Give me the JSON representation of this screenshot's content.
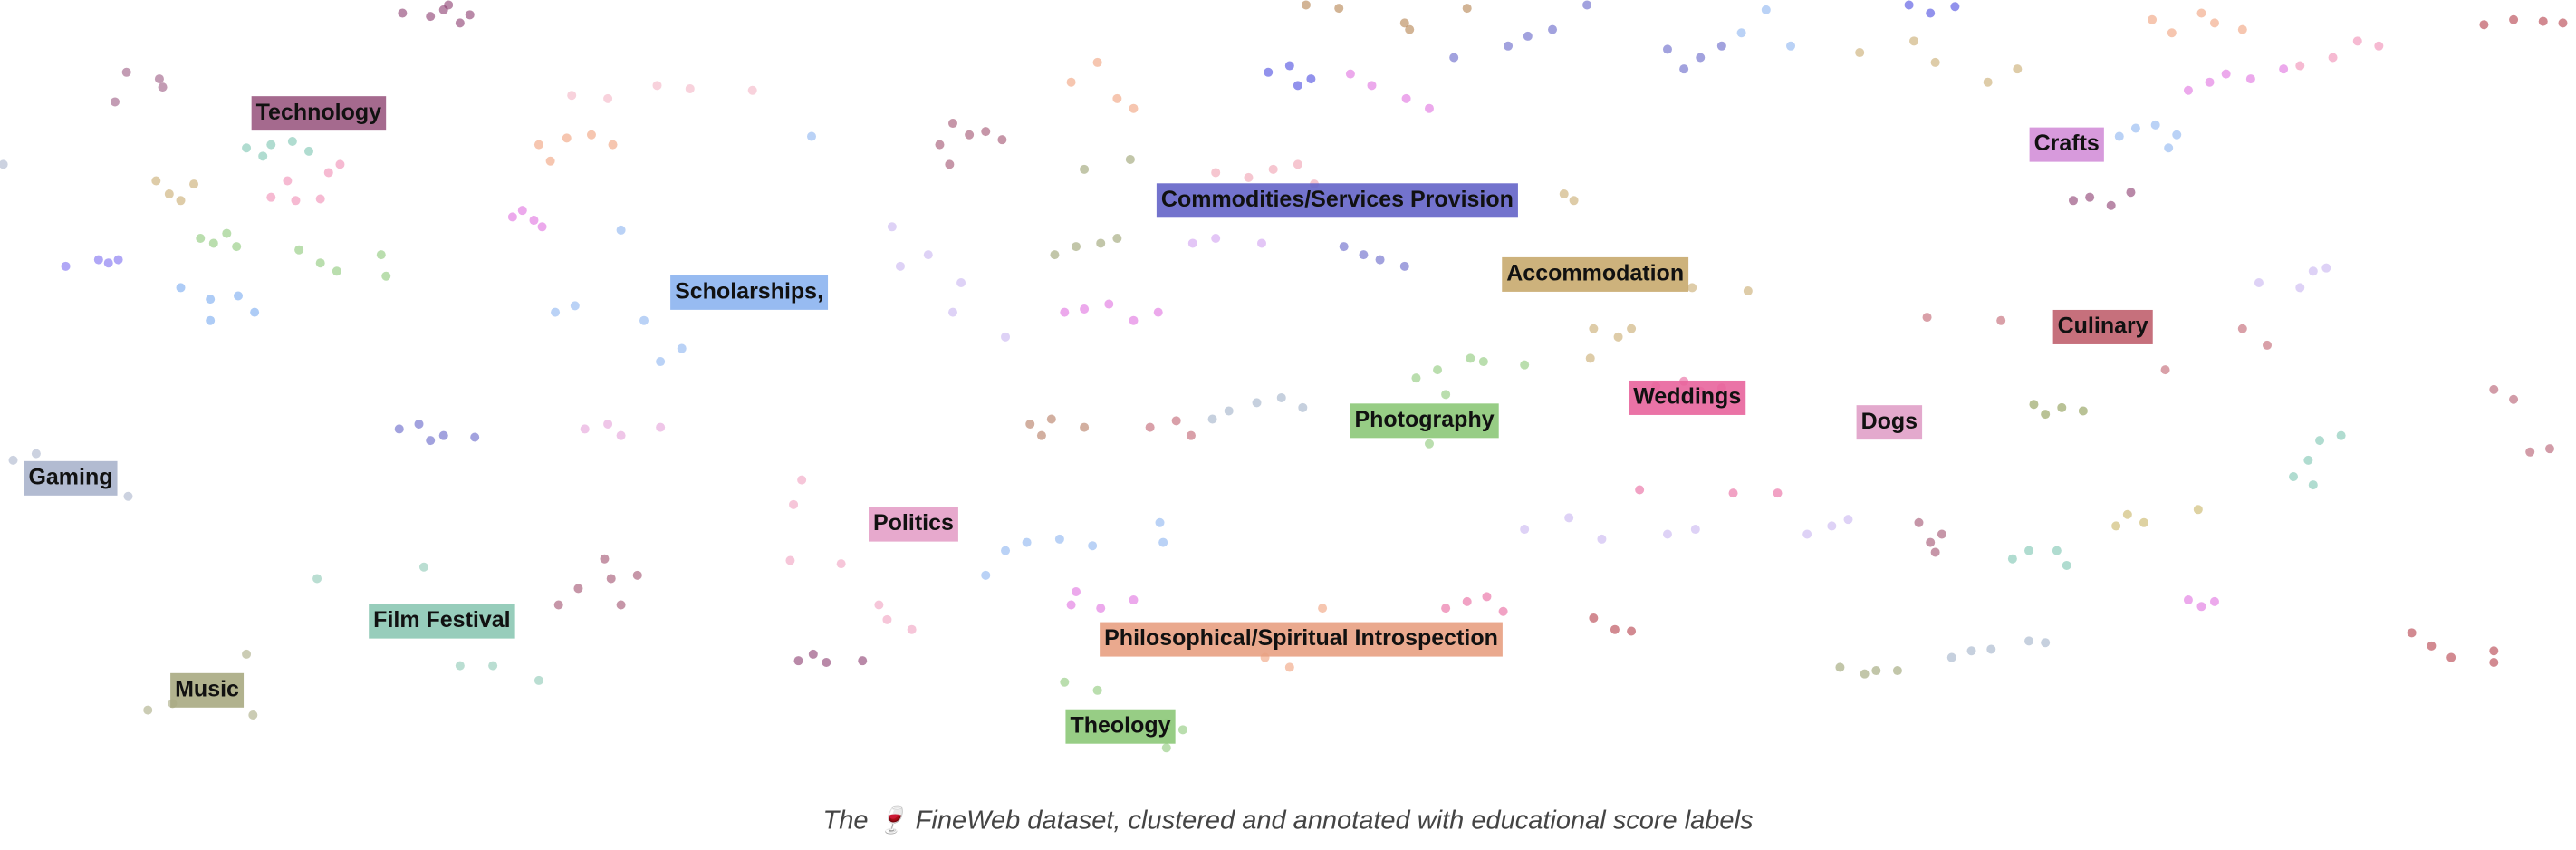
{
  "chart_data": {
    "type": "scatter",
    "caption": "The 🍷 FineWeb dataset, clustered and annotated with educational score labels",
    "xlim": [
      0,
      1568
    ],
    "ylim": [
      470,
      0
    ],
    "annotations": [
      {
        "text": "Technology",
        "x": 194,
        "y": 69,
        "color": "#9b5a82"
      },
      {
        "text": "Crafts",
        "x": 1258,
        "y": 88,
        "color": "#d38fd8"
      },
      {
        "text": "Commodities/Services Provision",
        "x": 814,
        "y": 122,
        "color": "#6464c8"
      },
      {
        "text": "Accommodation",
        "x": 971,
        "y": 167,
        "color": "#c8aa6e"
      },
      {
        "text": "Scholarships,",
        "x": 456,
        "y": 178,
        "color": "#8cb4f0"
      },
      {
        "text": "Culinary",
        "x": 1280,
        "y": 199,
        "color": "#c0606e"
      },
      {
        "text": "Weddings",
        "x": 1027,
        "y": 242,
        "color": "#e8649c"
      },
      {
        "text": "Photography",
        "x": 867,
        "y": 256,
        "color": "#8cc878"
      },
      {
        "text": "Dogs",
        "x": 1150,
        "y": 257,
        "color": "#e0a0c8"
      },
      {
        "text": "Gaming",
        "x": 43,
        "y": 291,
        "color": "#aab4cc"
      },
      {
        "text": "Politics",
        "x": 556,
        "y": 319,
        "color": "#e4a0c8"
      },
      {
        "text": "Film Festival",
        "x": 269,
        "y": 378,
        "color": "#8cc8b4"
      },
      {
        "text": "Philosophical/Spiritual Introspection",
        "x": 792,
        "y": 389,
        "color": "#e8a082"
      },
      {
        "text": "Music",
        "x": 126,
        "y": 420,
        "color": "#a8aa82"
      },
      {
        "text": "Theology",
        "x": 682,
        "y": 442,
        "color": "#8cc878"
      }
    ],
    "series": [
      {
        "color": "#8b3a6e",
        "x": [
          245,
          262,
          270,
          280,
          286,
          273
        ],
        "values": [
          8,
          10,
          6,
          14,
          9,
          3
        ]
      },
      {
        "color": "#9b5a82",
        "x": [
          77,
          97,
          70,
          99
        ],
        "values": [
          44,
          48,
          62,
          53
        ]
      },
      {
        "color": "#7cc4b0",
        "x": [
          150,
          165,
          178,
          188,
          160
        ],
        "values": [
          90,
          88,
          86,
          92,
          95
        ]
      },
      {
        "color": "#f08cb4",
        "x": [
          165,
          180,
          195,
          200,
          207,
          175
        ],
        "values": [
          120,
          122,
          121,
          105,
          100,
          110
        ]
      },
      {
        "color": "#c8aa6e",
        "x": [
          95,
          103,
          110,
          118
        ],
        "values": [
          110,
          118,
          122,
          112
        ]
      },
      {
        "color": "#8cc878",
        "x": [
          122,
          130,
          138,
          144,
          182,
          195,
          205,
          232,
          235
        ],
        "values": [
          145,
          148,
          142,
          150,
          152,
          160,
          165,
          155,
          168
        ]
      },
      {
        "color": "#7c6cf0",
        "x": [
          40,
          60,
          66,
          72
        ],
        "values": [
          162,
          158,
          160,
          158
        ]
      },
      {
        "color": "#78aaf0",
        "x": [
          110,
          128,
          145,
          155,
          128
        ],
        "values": [
          175,
          182,
          180,
          190,
          195
        ]
      },
      {
        "color": "#e070e0",
        "x": [
          312,
          318,
          325,
          330
        ],
        "values": [
          132,
          128,
          134,
          138
        ]
      },
      {
        "color": "#f0a07c",
        "x": [
          328,
          335,
          345,
          360,
          373
        ],
        "values": [
          88,
          98,
          84,
          82,
          88
        ]
      },
      {
        "color": "#f4b4c4",
        "x": [
          348,
          370,
          400,
          420,
          458
        ],
        "values": [
          58,
          60,
          52,
          54,
          55
        ]
      },
      {
        "color": "#8cb4f0",
        "x": [
          378,
          338,
          350,
          392,
          402,
          415,
          494
        ],
        "values": [
          140,
          190,
          186,
          195,
          220,
          212,
          83
        ]
      },
      {
        "color": "#6464c8",
        "x": [
          243,
          255,
          262,
          270,
          289
        ],
        "values": [
          261,
          258,
          268,
          265,
          266
        ]
      },
      {
        "color": "#e4a0d8",
        "x": [
          356,
          370,
          378,
          402
        ],
        "values": [
          261,
          258,
          265,
          260
        ]
      },
      {
        "color": "#a0506e",
        "x": [
          340,
          352,
          368,
          372,
          388,
          378
        ],
        "values": [
          368,
          358,
          340,
          352,
          350,
          368
        ]
      },
      {
        "color": "#a0506e",
        "x": [
          572,
          580,
          590,
          600,
          610,
          578
        ],
        "values": [
          88,
          75,
          82,
          80,
          85,
          100
        ]
      },
      {
        "color": "#9aa070",
        "x": [
          642,
          655,
          660,
          670,
          688,
          680
        ],
        "values": [
          155,
          150,
          103,
          148,
          97,
          145
        ]
      },
      {
        "color": "#f0a07c",
        "x": [
          652,
          668,
          680,
          690
        ],
        "values": [
          50,
          38,
          60,
          66
        ]
      },
      {
        "color": "#f0a0b0",
        "x": [
          740,
          760,
          775,
          790,
          800
        ],
        "values": [
          105,
          108,
          103,
          100,
          112
        ]
      },
      {
        "color": "#e070e0",
        "x": [
          648,
          660,
          675,
          690,
          705
        ],
        "values": [
          190,
          188,
          185,
          195,
          190
        ]
      },
      {
        "color": "#c8b4f0",
        "x": [
          543,
          548,
          565,
          585,
          612,
          580
        ],
        "values": [
          138,
          162,
          155,
          172,
          205,
          190
        ]
      },
      {
        "color": "#4a4ae0",
        "x": [
          772,
          785,
          798,
          790
        ],
        "values": [
          44,
          40,
          48,
          52
        ]
      },
      {
        "color": "#6464c8",
        "x": [
          818,
          830,
          840,
          855
        ],
        "values": [
          150,
          155,
          158,
          162
        ]
      },
      {
        "color": "#e070e0",
        "x": [
          822,
          835,
          856,
          870
        ],
        "values": [
          45,
          52,
          60,
          66
        ]
      },
      {
        "color": "#d0a0f0",
        "x": [
          726,
          740,
          768
        ],
        "values": [
          148,
          145,
          148
        ]
      },
      {
        "color": "#6464c8",
        "x": [
          885,
          918,
          930,
          945,
          966
        ],
        "values": [
          35,
          28,
          22,
          18,
          3
        ]
      },
      {
        "color": "#b4824e",
        "x": [
          795,
          815,
          855,
          858,
          893
        ],
        "values": [
          3,
          5,
          14,
          18,
          5
        ]
      },
      {
        "color": "#8cc878",
        "x": [
          862,
          875,
          880,
          895,
          903,
          928,
          870
        ],
        "values": [
          230,
          225,
          240,
          218,
          220,
          222,
          270
        ]
      },
      {
        "color": "#c8aa6e",
        "x": [
          952,
          958,
          970,
          985,
          993,
          1030,
          1064,
          968
        ],
        "values": [
          118,
          122,
          200,
          205,
          200,
          175,
          177,
          218
        ]
      },
      {
        "color": "#e8649c",
        "x": [
          1008,
          1025,
          1035,
          1048,
          998,
          1055,
          1082
        ],
        "values": [
          235,
          232,
          238,
          236,
          298,
          300,
          300
        ]
      },
      {
        "color": "#b47a60",
        "x": [
          627,
          634,
          640,
          660
        ],
        "values": [
          258,
          265,
          255,
          260
        ]
      },
      {
        "color": "#c06070",
        "x": [
          700,
          716,
          725
        ],
        "values": [
          260,
          256,
          265
        ]
      },
      {
        "color": "#a0b0c8",
        "x": [
          738,
          748,
          765,
          780,
          793
        ],
        "values": [
          255,
          250,
          245,
          242,
          248
        ]
      },
      {
        "color": "#8cb4f0",
        "x": [
          600,
          612,
          625,
          645,
          665,
          706,
          708
        ],
        "values": [
          350,
          335,
          330,
          328,
          332,
          318,
          330
        ]
      },
      {
        "color": "#f0a0c0",
        "x": [
          483,
          488,
          481,
          512,
          535,
          555,
          540
        ],
        "values": [
          307,
          292,
          341,
          343,
          368,
          383,
          377
        ]
      },
      {
        "color": "#8b3a6e",
        "x": [
          486,
          495,
          503,
          525
        ],
        "values": [
          402,
          398,
          403,
          402
        ]
      },
      {
        "color": "#e070e0",
        "x": [
          652,
          655,
          670,
          690
        ],
        "values": [
          368,
          360,
          370,
          365
        ]
      },
      {
        "color": "#e8649c",
        "x": [
          880,
          893,
          905,
          915
        ],
        "values": [
          370,
          366,
          363,
          372
        ]
      },
      {
        "color": "#f0a07c",
        "x": [
          770,
          785,
          805
        ],
        "values": [
          400,
          406,
          370
        ]
      },
      {
        "color": "#b43c48",
        "x": [
          970,
          983,
          993
        ],
        "values": [
          376,
          383,
          384
        ]
      },
      {
        "color": "#c8b4f0",
        "x": [
          928,
          955,
          975,
          1015,
          1032,
          1100,
          1115,
          1125
        ],
        "values": [
          322,
          315,
          328,
          325,
          322,
          325,
          320,
          316
        ]
      },
      {
        "color": "#a0506e",
        "x": [
          1168,
          1175,
          1182,
          1178
        ],
        "values": [
          318,
          330,
          325,
          336
        ]
      },
      {
        "color": "#7cc4b0",
        "x": [
          1225,
          1235,
          1252,
          1258,
          1396,
          1405,
          1412,
          1425,
          1408
        ],
        "values": [
          340,
          335,
          335,
          344,
          290,
          280,
          268,
          265,
          295
        ]
      },
      {
        "color": "#c8b464",
        "x": [
          1288,
          1295,
          1305,
          1338
        ],
        "values": [
          320,
          313,
          318,
          310
        ]
      },
      {
        "color": "#e070e0",
        "x": [
          1332,
          1340,
          1348
        ],
        "values": [
          365,
          369,
          366
        ]
      },
      {
        "color": "#9aa070",
        "x": [
          1120,
          1135,
          1142,
          1155
        ],
        "values": [
          406,
          410,
          408,
          408
        ]
      },
      {
        "color": "#a0b0c8",
        "x": [
          1188,
          1200,
          1212,
          1235,
          1245
        ],
        "values": [
          400,
          396,
          395,
          390,
          391
        ]
      },
      {
        "color": "#b43c48",
        "x": [
          1468,
          1480,
          1492,
          1518,
          1518
        ],
        "values": [
          385,
          393,
          400,
          396,
          403
        ]
      },
      {
        "color": "#b45a6e",
        "x": [
          1518,
          1530,
          1540,
          1552
        ],
        "values": [
          237,
          243,
          275,
          273
        ]
      },
      {
        "color": "#8a9a50",
        "x": [
          1238,
          1245,
          1255,
          1268
        ],
        "values": [
          246,
          252,
          248,
          250
        ]
      },
      {
        "color": "#c8b4f0",
        "x": [
          1375,
          1400,
          1408,
          1416
        ],
        "values": [
          172,
          175,
          165,
          163
        ]
      },
      {
        "color": "#c0606e",
        "x": [
          1173,
          1218,
          1318,
          1365,
          1380
        ],
        "values": [
          193,
          195,
          225,
          200,
          210
        ]
      },
      {
        "color": "#8b3a6e",
        "x": [
          1262,
          1272,
          1285,
          1297
        ],
        "values": [
          122,
          120,
          125,
          117
        ]
      },
      {
        "color": "#8cb4f0",
        "x": [
          1290,
          1300,
          1312,
          1325,
          1320,
          1060,
          1075,
          1090
        ],
        "values": [
          83,
          78,
          76,
          82,
          90,
          20,
          6,
          28
        ]
      },
      {
        "color": "#e070e0",
        "x": [
          1332,
          1345,
          1355,
          1370,
          1390
        ],
        "values": [
          55,
          50,
          45,
          48,
          42
        ]
      },
      {
        "color": "#f0a07c",
        "x": [
          1310,
          1322,
          1340,
          1348,
          1365
        ],
        "values": [
          12,
          20,
          8,
          14,
          18
        ]
      },
      {
        "color": "#f08cb4",
        "x": [
          1400,
          1420,
          1435,
          1448
        ],
        "values": [
          40,
          35,
          25,
          28
        ]
      },
      {
        "color": "#b43c48",
        "x": [
          1512,
          1530,
          1548,
          1560
        ],
        "values": [
          15,
          12,
          13,
          14
        ]
      },
      {
        "color": "#6464c8",
        "x": [
          1015,
          1025,
          1035,
          1048
        ],
        "values": [
          30,
          42,
          35,
          28
        ]
      },
      {
        "color": "#4a4ae0",
        "x": [
          1162,
          1175,
          1190
        ],
        "values": [
          3,
          8,
          4
        ]
      },
      {
        "color": "#c8aa6e",
        "x": [
          1132,
          1165,
          1178,
          1210,
          1228
        ],
        "values": [
          32,
          25,
          38,
          50,
          42
        ]
      },
      {
        "color": "#aab4cc",
        "x": [
          8,
          22,
          78,
          2
        ],
        "values": [
          280,
          276,
          302,
          100
        ]
      },
      {
        "color": "#a8aa82",
        "x": [
          90,
          105,
          150,
          154
        ],
        "values": [
          432,
          428,
          398,
          435
        ]
      },
      {
        "color": "#8cc8b4",
        "x": [
          193,
          258,
          280,
          300,
          328
        ],
        "values": [
          352,
          345,
          405,
          405,
          414
        ]
      },
      {
        "color": "#8cc878",
        "x": [
          648,
          668,
          710,
          720,
          710
        ],
        "values": [
          415,
          420,
          440,
          444,
          455
        ]
      }
    ]
  }
}
